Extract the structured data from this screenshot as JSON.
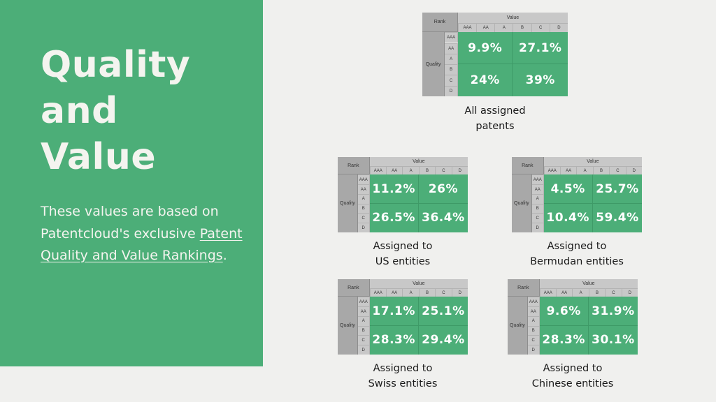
{
  "left": {
    "title_lines": [
      "Quality",
      "and",
      "Value"
    ],
    "desc_text": "These values are based on Patentcloud's exclusive",
    "desc_link": "Patent Quality and Value Rankings",
    "desc_end": "."
  },
  "matrix_labels": {
    "rank": "Rank",
    "value": "Value",
    "quality": "Quality",
    "grades": [
      "AAA",
      "AA",
      "A",
      "B",
      "C",
      "D"
    ]
  },
  "panels": [
    {
      "caption": [
        "All assigned",
        "patents"
      ],
      "cells": [
        "9.9%",
        "27.1%",
        "24%",
        "39%"
      ]
    },
    {
      "caption": [
        "Assigned to",
        "US entities"
      ],
      "cells": [
        "11.2%",
        "26%",
        "26.5%",
        "36.4%"
      ]
    },
    {
      "caption": [
        "Assigned to",
        "Bermudan entities"
      ],
      "cells": [
        "4.5%",
        "25.7%",
        "10.4%",
        "59.4%"
      ]
    },
    {
      "caption": [
        "Assigned to",
        "Swiss entities"
      ],
      "cells": [
        "17.1%",
        "25.1%",
        "28.3%",
        "29.4%"
      ]
    },
    {
      "caption": [
        "Assigned to",
        "Chinese entities"
      ],
      "cells": [
        "9.6%",
        "31.9%",
        "28.3%",
        "30.1%"
      ]
    }
  ]
}
